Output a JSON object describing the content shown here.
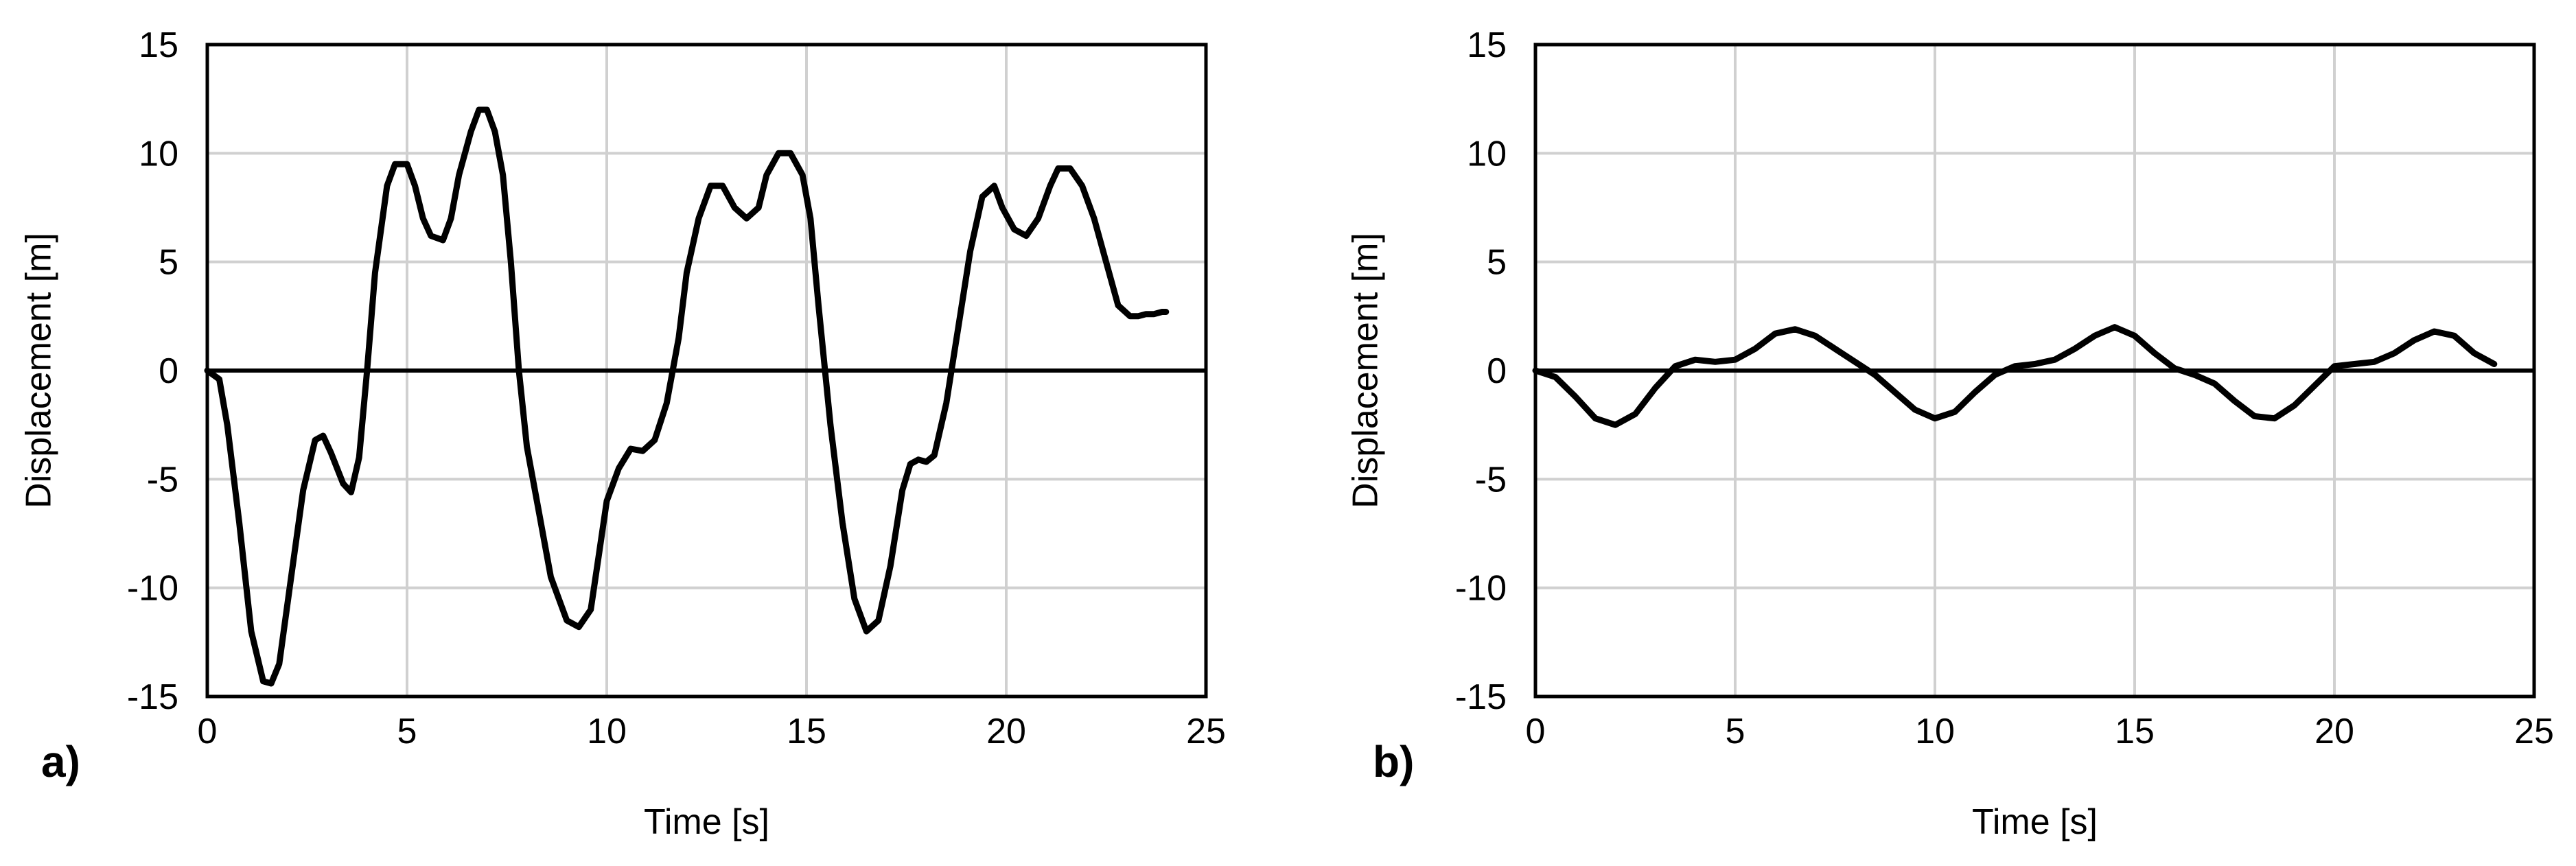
{
  "chart_data": [
    {
      "type": "line",
      "panel_label": "a)",
      "xlabel": "Time [s]",
      "ylabel": "Displacement [m]",
      "xlim": [
        0,
        25
      ],
      "ylim": [
        -15,
        15
      ],
      "xticks": [
        "0",
        "5",
        "10",
        "15",
        "20",
        "25"
      ],
      "yticks": [
        "-15",
        "-10",
        "-5",
        "0",
        "5",
        "10",
        "15"
      ],
      "grid": true,
      "line_color": "#000000",
      "grid_color": "#d0d0d0",
      "series": [
        {
          "x": [
            0,
            0.3,
            0.5,
            0.8,
            1.1,
            1.4,
            1.6,
            1.8,
            2.1,
            2.4,
            2.7,
            2.9,
            3.1,
            3.4,
            3.6,
            3.8,
            4.0,
            4.2,
            4.5,
            4.7,
            5.0,
            5.2,
            5.4,
            5.6,
            5.9,
            6.1,
            6.3,
            6.6,
            6.8,
            7.0,
            7.2,
            7.4,
            7.6,
            7.8,
            8.0,
            8.3,
            8.6,
            9.0,
            9.3,
            9.6,
            9.8,
            10.0,
            10.3,
            10.6,
            10.9,
            11.2,
            11.5,
            11.8,
            12.0,
            12.3,
            12.6,
            12.9,
            13.2,
            13.5,
            13.8,
            14.0,
            14.3,
            14.6,
            14.9,
            15.1,
            15.3,
            15.6,
            15.9,
            16.2,
            16.5,
            16.8,
            17.1,
            17.4,
            17.6,
            17.8,
            18.0,
            18.2,
            18.5,
            18.8,
            19.1,
            19.4,
            19.7,
            19.9,
            20.2,
            20.5,
            20.8,
            21.1,
            21.3,
            21.6,
            21.9,
            22.2,
            22.5,
            22.8,
            23.1,
            23.3,
            23.5,
            23.7,
            23.9,
            24.0
          ],
          "y": [
            0,
            -0.4,
            -2.5,
            -7,
            -12,
            -14.3,
            -14.4,
            -13.5,
            -9.5,
            -5.5,
            -3.2,
            -3.0,
            -3.8,
            -5.2,
            -5.6,
            -4.0,
            0,
            4.5,
            8.5,
            9.5,
            9.5,
            8.5,
            7.0,
            6.2,
            6.0,
            7.0,
            9.0,
            11.0,
            12.0,
            12.0,
            11.0,
            9.0,
            5.0,
            0,
            -3.5,
            -6.5,
            -9.5,
            -11.5,
            -11.8,
            -11.0,
            -8.5,
            -6.0,
            -4.5,
            -3.6,
            -3.7,
            -3.2,
            -1.5,
            1.5,
            4.5,
            7.0,
            8.5,
            8.5,
            7.5,
            7.0,
            7.5,
            9.0,
            10.0,
            10.0,
            9.0,
            7.0,
            3.0,
            -2.5,
            -7.0,
            -10.5,
            -12.0,
            -11.5,
            -9.0,
            -5.5,
            -4.3,
            -4.1,
            -4.2,
            -3.9,
            -1.5,
            2.0,
            5.5,
            8.0,
            8.5,
            7.5,
            6.5,
            6.2,
            7.0,
            8.5,
            9.3,
            9.3,
            8.5,
            7.0,
            5.0,
            3.0,
            2.5,
            2.5,
            2.6,
            2.6,
            2.7,
            2.7
          ]
        }
      ]
    },
    {
      "type": "line",
      "panel_label": "b)",
      "xlabel": "Time [s]",
      "ylabel": "Displacement [m]",
      "xlim": [
        0,
        25
      ],
      "ylim": [
        -15,
        15
      ],
      "xticks": [
        "0",
        "5",
        "10",
        "15",
        "20",
        "25"
      ],
      "yticks": [
        "-15",
        "-10",
        "-5",
        "0",
        "5",
        "10",
        "15"
      ],
      "grid": true,
      "line_color": "#000000",
      "grid_color": "#d0d0d0",
      "series": [
        {
          "x": [
            0,
            0.5,
            1.0,
            1.5,
            2.0,
            2.5,
            3.0,
            3.5,
            4.0,
            4.5,
            5.0,
            5.5,
            6.0,
            6.5,
            7.0,
            7.5,
            8.0,
            8.5,
            9.0,
            9.5,
            10.0,
            10.5,
            11.0,
            11.5,
            12.0,
            12.5,
            13.0,
            13.5,
            14.0,
            14.5,
            15.0,
            15.5,
            16.0,
            16.5,
            17.0,
            17.5,
            18.0,
            18.5,
            19.0,
            19.5,
            20.0,
            20.5,
            21.0,
            21.5,
            22.0,
            22.5,
            23.0,
            23.5,
            24.0
          ],
          "y": [
            0,
            -0.3,
            -1.2,
            -2.2,
            -2.5,
            -2.0,
            -0.8,
            0.2,
            0.5,
            0.4,
            0.5,
            1.0,
            1.7,
            1.9,
            1.6,
            1.0,
            0.4,
            -0.2,
            -1.0,
            -1.8,
            -2.2,
            -1.9,
            -1.0,
            -0.2,
            0.2,
            0.3,
            0.5,
            1.0,
            1.6,
            2.0,
            1.6,
            0.8,
            0.1,
            -0.2,
            -0.6,
            -1.4,
            -2.1,
            -2.2,
            -1.6,
            -0.7,
            0.2,
            0.3,
            0.4,
            0.8,
            1.4,
            1.8,
            1.6,
            0.8,
            0.3
          ]
        }
      ]
    }
  ]
}
